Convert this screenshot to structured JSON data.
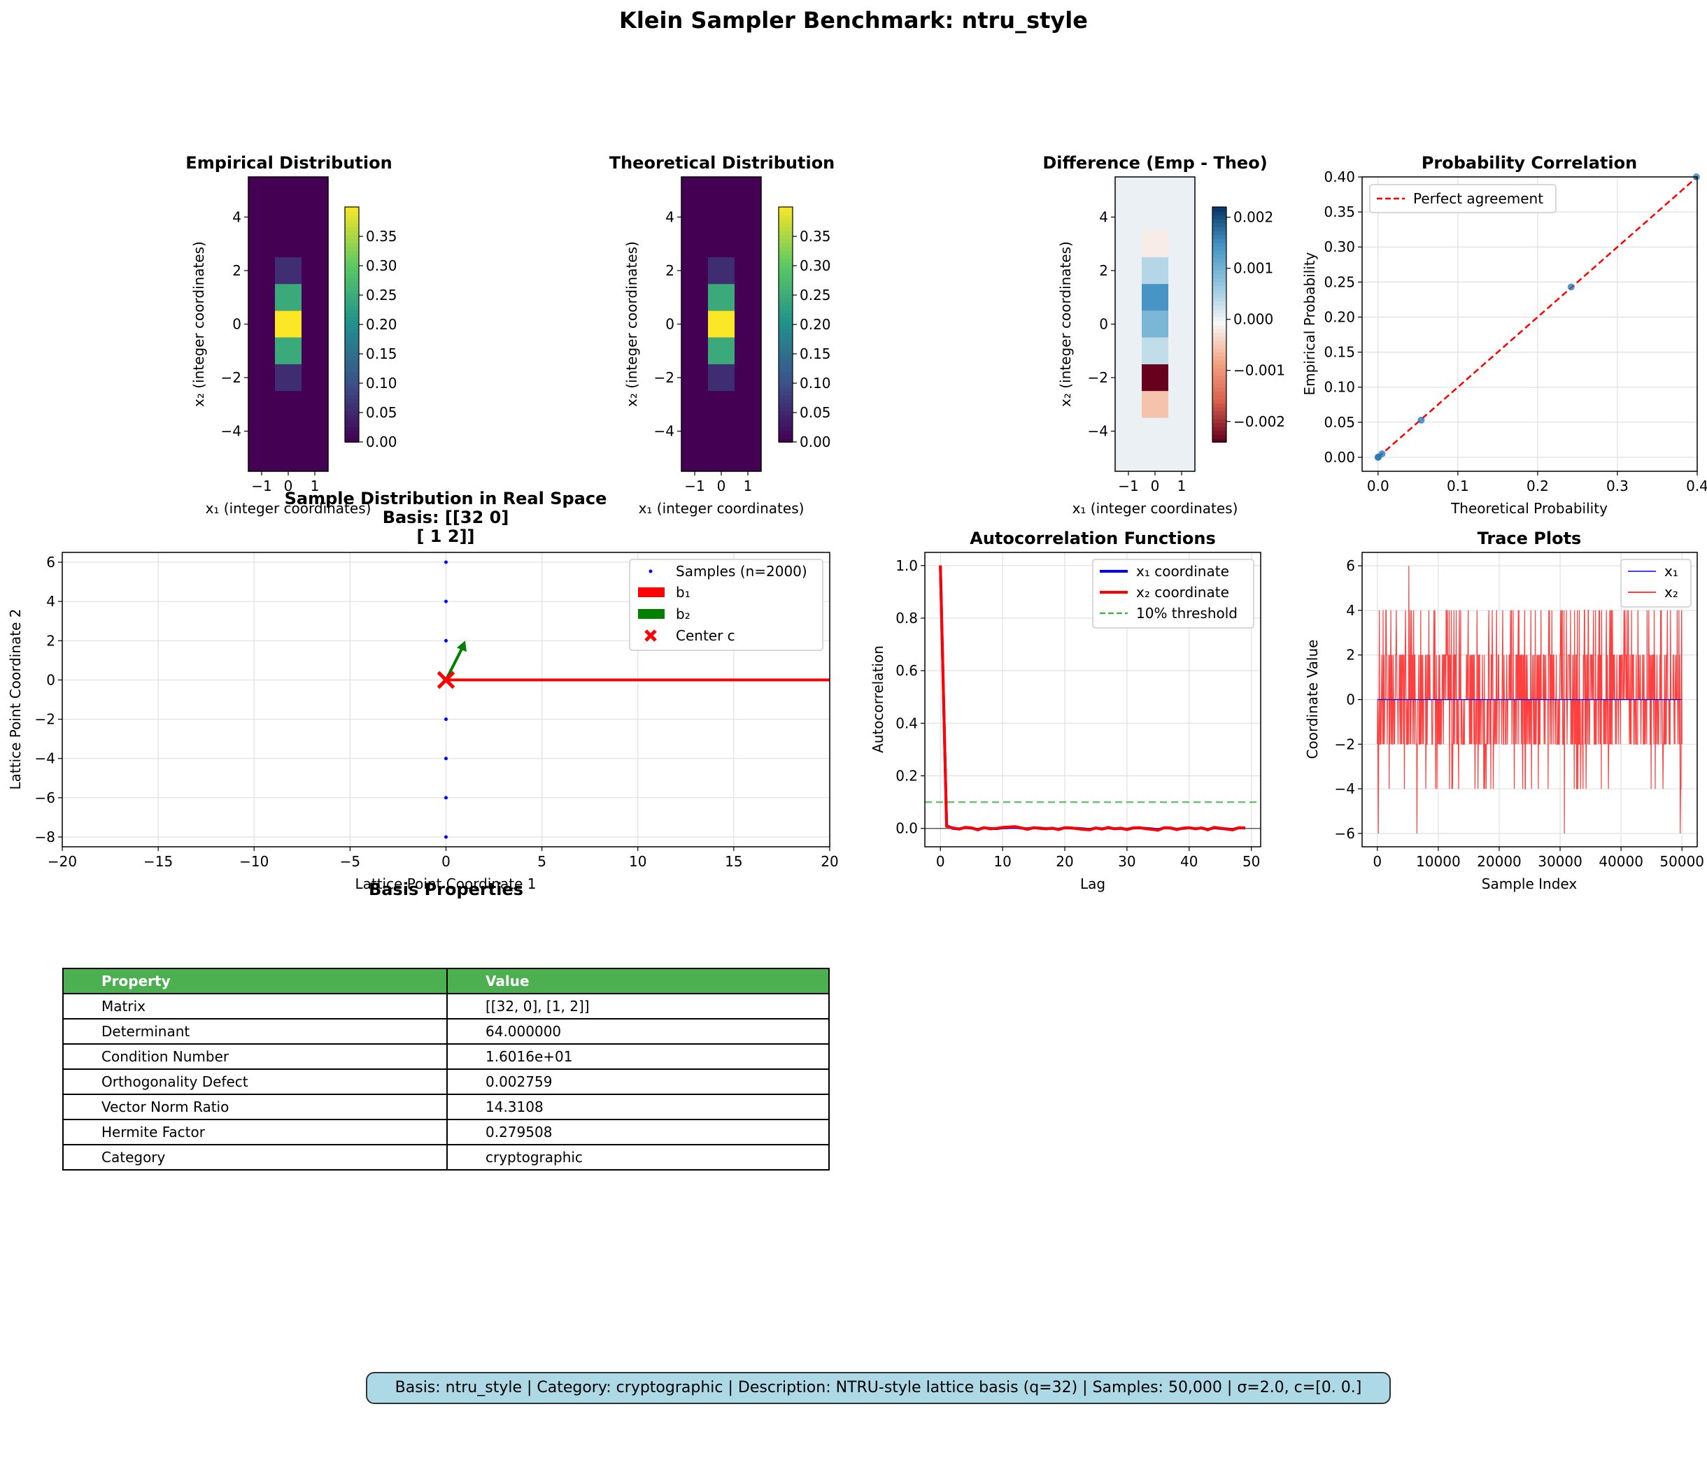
{
  "suptitle": "Klein Sampler Benchmark: ntru_style",
  "footer": "Basis: ntru_style | Category: cryptographic | Description: NTRU-style lattice basis (q=32) | Samples: 50,000 | σ=2.0, c=[0. 0.]",
  "colors": {
    "viridis": [
      "#440154",
      "#3b528b",
      "#21918c",
      "#5ec962",
      "#fde725"
    ],
    "samples": "#0000ff",
    "b1": "#ff0000",
    "b2": "#008000",
    "center": "#ff0000",
    "x1": "#0000ff",
    "x2": "#ff0000",
    "threshold": "#4caf50",
    "header": "#4caf50"
  },
  "chart_data": [
    {
      "type": "heatmap",
      "title": "Empirical Distribution",
      "xlabel": "x₁ (integer coordinates)",
      "ylabel": "x₂ (integer coordinates)",
      "x": [
        -1,
        0,
        1
      ],
      "y": [
        -5,
        -4,
        -3,
        -2,
        -1,
        0,
        1,
        2,
        3,
        4,
        5
      ],
      "values_center_column": {
        "y": [
          -2,
          -1,
          0,
          1,
          2
        ],
        "v": [
          0.054,
          0.242,
          0.399,
          0.243,
          0.055
        ]
      },
      "xticks": [
        "−1",
        "0",
        "1"
      ],
      "yticks": [
        "−4",
        "−2",
        "0",
        "2",
        "4"
      ],
      "colorbar": {
        "range": [
          0,
          0.4
        ],
        "ticks": [
          "0.00",
          "0.05",
          "0.10",
          "0.15",
          "0.20",
          "0.25",
          "0.30",
          "0.35"
        ],
        "cmap": "viridis"
      }
    },
    {
      "type": "heatmap",
      "title": "Theoretical Distribution",
      "xlabel": "x₁ (integer coordinates)",
      "ylabel": "x₂ (integer coordinates)",
      "x": [
        -1,
        0,
        1
      ],
      "y": [
        -5,
        -4,
        -3,
        -2,
        -1,
        0,
        1,
        2,
        3,
        4,
        5
      ],
      "values_center_column": {
        "y": [
          -2,
          -1,
          0,
          1,
          2
        ],
        "v": [
          0.054,
          0.242,
          0.399,
          0.242,
          0.054
        ]
      },
      "xticks": [
        "−1",
        "0",
        "1"
      ],
      "yticks": [
        "−4",
        "−2",
        "0",
        "2",
        "4"
      ],
      "colorbar": {
        "range": [
          0,
          0.4
        ],
        "ticks": [
          "0.00",
          "0.05",
          "0.10",
          "0.15",
          "0.20",
          "0.25",
          "0.30",
          "0.35"
        ],
        "cmap": "viridis"
      }
    },
    {
      "type": "heatmap",
      "title": "Difference (Emp - Theo)",
      "xlabel": "x₁ (integer coordinates)",
      "ylabel": "x₂ (integer coordinates)",
      "x": [
        -1,
        0,
        1
      ],
      "values_center_column": {
        "y": [
          -3,
          -2,
          -1,
          0,
          1,
          2,
          3
        ],
        "v": [
          -0.0006,
          -0.0024,
          0.0003,
          0.0009,
          0.0014,
          0.0004,
          -0.0002
        ]
      },
      "xticks": [
        "−1",
        "0",
        "1"
      ],
      "yticks": [
        "−4",
        "−2",
        "0",
        "2",
        "4"
      ],
      "colorbar": {
        "range": [
          -0.0024,
          0.0022
        ],
        "ticks": [
          "−0.002",
          "−0.001",
          "0.000",
          "0.001",
          "0.002"
        ],
        "cmap": "RdBu"
      }
    },
    {
      "type": "scatter",
      "title": "Probability Correlation",
      "xlabel": "Theoretical Probability",
      "ylabel": "Empirical Probability",
      "points": [
        [
          0,
          0
        ],
        [
          0.0003,
          0.0003
        ],
        [
          0.005,
          0.005
        ],
        [
          0.054,
          0.053
        ],
        [
          0.242,
          0.243
        ],
        [
          0.399,
          0.4
        ]
      ],
      "legend": [
        "Perfect agreement"
      ],
      "xticks": [
        "0.0",
        "0.1",
        "0.2",
        "0.3",
        "0.4"
      ],
      "yticks": [
        "0.00",
        "0.05",
        "0.10",
        "0.15",
        "0.20",
        "0.25",
        "0.30",
        "0.35",
        "0.40"
      ]
    },
    {
      "type": "scatter",
      "title_lines": [
        "Sample Distribution in Real Space",
        "Basis: [[32  0]",
        "[ 1  2]]"
      ],
      "xlabel": "Lattice Point Coordinate 1",
      "ylabel": "Lattice Point Coordinate 2",
      "xlim": [
        -20,
        20
      ],
      "ylim": [
        -8.5,
        6.5
      ],
      "samples_y": [
        -8,
        -6,
        -4,
        -2,
        0,
        2,
        4,
        6
      ],
      "b1": [
        32,
        0
      ],
      "b2": [
        1,
        2
      ],
      "center": [
        0,
        0
      ],
      "legend": [
        "Samples (n=2000)",
        "b₁",
        "b₂",
        "Center c"
      ],
      "xticks": [
        "−20",
        "−15",
        "−10",
        "−5",
        "0",
        "5",
        "10",
        "15",
        "20"
      ],
      "yticks": [
        "−8",
        "−6",
        "−4",
        "−2",
        "0",
        "2",
        "4",
        "6"
      ]
    },
    {
      "type": "line",
      "title": "Autocorrelation Functions",
      "xlabel": "Lag",
      "ylabel": "Autocorrelation",
      "series": [
        {
          "name": "x₁ coordinate",
          "values": [
            1.0,
            0.01,
            0.0,
            -0.002,
            0.003,
            0.001,
            -0.004,
            0.002,
            0.0,
            -0.001,
            0.002,
            0.003,
            0.004,
            0.001,
            -0.002,
            0.002,
            0.001,
            -0.001,
            0.0,
            -0.003,
            0.002,
            0.001,
            0.0,
            -0.002,
            -0.004,
            0.001,
            -0.002,
            0.002,
            -0.001,
            0.0,
            -0.003,
            0.001,
            0.002,
            0.0,
            -0.002,
            -0.005,
            0.002,
            0.001,
            -0.003,
            0.0,
            0.002,
            -0.001,
            0.001,
            -0.004,
            0.002,
            0.0,
            -0.002,
            -0.004,
            0.002,
            0.001
          ]
        },
        {
          "name": "x₂ coordinate",
          "values": [
            1.0,
            0.008,
            0.002,
            -0.003,
            0.004,
            0.002,
            -0.006,
            0.003,
            -0.002,
            0.0,
            0.004,
            0.005,
            0.007,
            0.002,
            -0.004,
            0.003,
            0.0,
            -0.002,
            0.001,
            -0.005,
            0.003,
            0.002,
            -0.001,
            -0.004,
            -0.006,
            0.002,
            -0.003,
            0.004,
            -0.002,
            0.001,
            -0.005,
            0.002,
            0.003,
            -0.001,
            -0.004,
            -0.007,
            0.003,
            0.002,
            -0.005,
            0.001,
            0.003,
            -0.002,
            0.002,
            -0.006,
            0.004,
            0.001,
            -0.003,
            -0.006,
            0.003,
            0.002
          ]
        },
        {
          "name": "10% threshold",
          "y": 0.1
        }
      ],
      "xticks": [
        "0",
        "10",
        "20",
        "30",
        "40",
        "50"
      ],
      "yticks": [
        "0.0",
        "0.2",
        "0.4",
        "0.6",
        "0.8",
        "1.0"
      ]
    },
    {
      "type": "line",
      "title": "Trace Plots",
      "xlabel": "Sample Index",
      "ylabel": "Coordinate Value",
      "series": [
        {
          "name": "x₁",
          "constant": 0
        },
        {
          "name": "x₂",
          "range": [
            -6,
            6
          ],
          "step": 2
        }
      ],
      "xrange": [
        0,
        50000
      ],
      "xticks": [
        "0",
        "10000",
        "20000",
        "30000",
        "40000",
        "50000"
      ],
      "yticks": [
        "−6",
        "−4",
        "−2",
        "0",
        "2",
        "4",
        "6"
      ]
    }
  ],
  "table": {
    "title": "Basis Properties",
    "headers": [
      "Property",
      "Value"
    ],
    "rows": [
      [
        "Matrix",
        "[[32, 0], [1, 2]]"
      ],
      [
        "Determinant",
        "64.000000"
      ],
      [
        "Condition Number",
        "1.6016e+01"
      ],
      [
        "Orthogonality Defect",
        "0.002759"
      ],
      [
        "Vector Norm Ratio",
        "14.3108"
      ],
      [
        "Hermite Factor",
        "0.279508"
      ],
      [
        "Category",
        "cryptographic"
      ]
    ]
  }
}
